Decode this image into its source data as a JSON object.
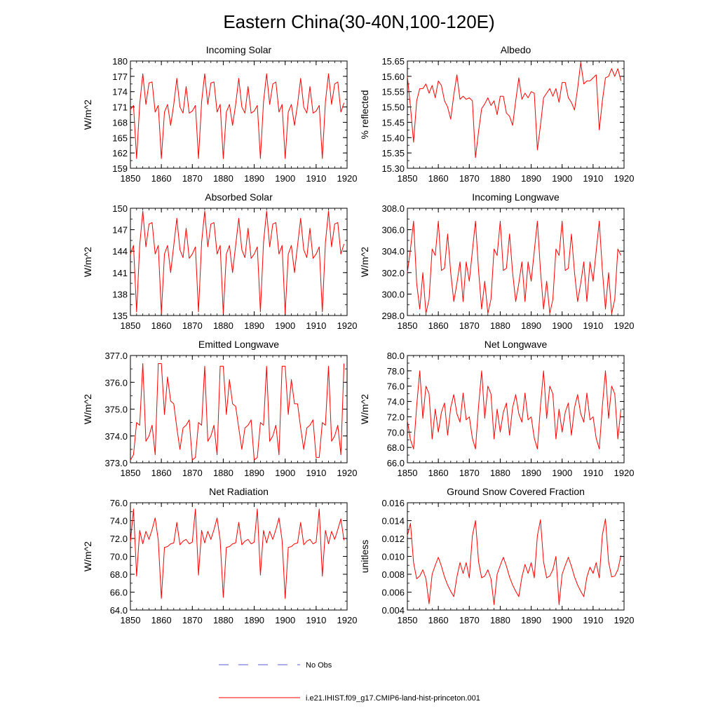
{
  "title": "Eastern China(30-40N,100-120E)",
  "colors": {
    "model": "#ff0000",
    "obs": "#5b5bd6",
    "axis": "#000000"
  },
  "legend": {
    "placement": "bottom-center",
    "obs_label": "No Obs",
    "model_label": "i.e21.IHIST.f09_g17.CMIP6-land-hist-princeton.001"
  },
  "chart_data": [
    {
      "type": "line",
      "title": "Incoming Solar",
      "ylabel": "W/m^2",
      "xlim": [
        1850,
        1920
      ],
      "xticks": [
        1850,
        1860,
        1870,
        1880,
        1890,
        1900,
        1910,
        1920
      ],
      "ylim": [
        159,
        180
      ],
      "yticks": [
        159,
        162,
        165,
        168,
        171,
        174,
        177,
        180
      ],
      "ytick_decimals": 0,
      "grid": false,
      "series": [
        {
          "name": "i.e21.IHIST.f09_g17.CMIP6-land-hist-princeton.001",
          "x_start": 1850,
          "x_step": 1,
          "values": [
            170.5,
            171.3,
            160.9,
            171.5,
            177.5,
            171.5,
            175.7,
            175.9,
            170.0,
            171.3,
            160.9,
            170.0,
            171.5,
            167.4,
            171.5,
            176.6,
            171.0,
            169.8,
            175.0,
            169.8,
            170.2,
            171.3,
            160.9,
            172.0,
            177.5,
            171.5,
            175.7,
            175.9,
            170.0,
            171.5,
            160.9,
            170.0,
            171.5,
            167.4,
            171.5,
            176.6,
            171.0,
            169.8,
            175.0,
            169.8,
            170.2,
            171.3,
            160.9,
            172.0,
            177.5,
            171.5,
            175.5,
            175.9,
            170.0,
            171.5,
            160.9,
            170.0,
            171.5,
            167.4,
            171.5,
            176.6,
            171.0,
            169.8,
            175.0,
            169.8,
            170.2,
            171.3,
            160.9,
            172.0,
            177.5,
            171.5,
            175.5,
            175.9,
            170.0,
            171.8
          ]
        }
      ]
    },
    {
      "type": "line",
      "title": "Albedo",
      "ylabel": "% reflected",
      "xlim": [
        1850,
        1920
      ],
      "xticks": [
        1850,
        1860,
        1870,
        1880,
        1890,
        1900,
        1910,
        1920
      ],
      "ylim": [
        15.3,
        15.65
      ],
      "yticks": [
        15.3,
        15.35,
        15.4,
        15.45,
        15.5,
        15.55,
        15.6,
        15.65
      ],
      "ytick_decimals": 2,
      "grid": false,
      "series": [
        {
          "name": "i.e21.IHIST.f09_g17.CMIP6-land-hist-princeton.001",
          "x_start": 1850,
          "x_step": 1,
          "values": [
            15.6,
            15.5,
            15.385,
            15.52,
            15.56,
            15.56,
            15.575,
            15.545,
            15.57,
            15.53,
            15.585,
            15.57,
            15.52,
            15.5,
            15.46,
            15.54,
            15.605,
            15.525,
            15.535,
            15.525,
            15.53,
            15.52,
            15.335,
            15.42,
            15.495,
            15.51,
            15.53,
            15.505,
            15.52,
            15.475,
            15.535,
            15.535,
            15.48,
            15.47,
            15.44,
            15.52,
            15.595,
            15.525,
            15.545,
            15.53,
            15.55,
            15.545,
            15.36,
            15.44,
            15.53,
            15.545,
            15.56,
            15.535,
            15.56,
            15.515,
            15.58,
            15.58,
            15.53,
            15.515,
            15.49,
            15.56,
            15.645,
            15.575,
            15.585,
            15.585,
            15.595,
            15.605,
            15.425,
            15.52,
            15.595,
            15.6,
            15.625,
            15.6,
            15.625,
            15.585
          ]
        }
      ]
    },
    {
      "type": "line",
      "title": "Absorbed Solar",
      "ylabel": "W/m^2",
      "xlim": [
        1850,
        1920
      ],
      "xticks": [
        1850,
        1860,
        1870,
        1880,
        1890,
        1900,
        1910,
        1920
      ],
      "ylim": [
        135,
        150
      ],
      "yticks": [
        135,
        138,
        141,
        144,
        147,
        150
      ],
      "ytick_decimals": 0,
      "grid": false,
      "series": [
        {
          "name": "i.e21.IHIST.f09_g17.CMIP6-land-hist-princeton.001",
          "x_start": 1850,
          "x_step": 1,
          "values": [
            143.6,
            144.8,
            135.5,
            144.8,
            149.6,
            144.6,
            147.8,
            148.0,
            143.6,
            144.8,
            135.3,
            143.6,
            144.8,
            141.0,
            144.8,
            148.6,
            144.2,
            143.1,
            147.2,
            143.0,
            143.6,
            144.6,
            135.5,
            145.2,
            149.6,
            144.6,
            147.8,
            148.0,
            143.6,
            144.8,
            135.3,
            143.6,
            144.8,
            141.0,
            144.8,
            148.6,
            144.2,
            143.1,
            147.2,
            143.0,
            143.6,
            144.6,
            135.5,
            145.2,
            149.6,
            144.6,
            147.8,
            148.0,
            143.6,
            144.8,
            135.3,
            143.6,
            144.8,
            141.0,
            144.8,
            148.6,
            144.2,
            143.1,
            147.2,
            143.0,
            143.6,
            144.6,
            135.5,
            145.2,
            149.6,
            144.6,
            147.8,
            148.0,
            143.6,
            145.0
          ]
        }
      ]
    },
    {
      "type": "line",
      "title": "Incoming Longwave",
      "ylabel": "W/m^2",
      "xlim": [
        1850,
        1920
      ],
      "xticks": [
        1850,
        1860,
        1870,
        1880,
        1890,
        1900,
        1910,
        1920
      ],
      "ylim": [
        298,
        308
      ],
      "yticks": [
        298,
        300,
        302,
        304,
        306,
        308
      ],
      "ytick_decimals": 1,
      "grid": false,
      "series": [
        {
          "name": "i.e21.IHIST.f09_g17.CMIP6-land-hist-princeton.001",
          "x_start": 1850,
          "x_step": 1,
          "values": [
            302.0,
            304.2,
            306.8,
            301.0,
            298.6,
            302.0,
            298.2,
            299.5,
            304.2,
            303.6,
            306.8,
            302.2,
            302.4,
            305.6,
            302.0,
            299.3,
            301.0,
            303.0,
            299.3,
            303.0,
            301.2,
            304.0,
            306.8,
            302.2,
            298.6,
            301.2,
            298.2,
            299.5,
            304.2,
            303.6,
            306.8,
            302.2,
            302.4,
            305.6,
            302.0,
            299.3,
            301.0,
            303.0,
            299.3,
            303.0,
            301.2,
            304.0,
            306.8,
            302.2,
            298.6,
            301.2,
            298.2,
            299.5,
            304.2,
            303.6,
            306.8,
            302.2,
            302.4,
            305.6,
            302.0,
            299.3,
            301.0,
            303.0,
            299.3,
            303.0,
            301.2,
            304.0,
            306.8,
            302.2,
            298.6,
            302.0,
            298.2,
            299.5,
            304.2,
            303.6
          ]
        }
      ]
    },
    {
      "type": "line",
      "title": "Emitted Longwave",
      "ylabel": "W/m^2",
      "xlim": [
        1850,
        1920
      ],
      "xticks": [
        1850,
        1860,
        1870,
        1880,
        1890,
        1900,
        1910,
        1920
      ],
      "ylim": [
        373,
        377
      ],
      "yticks": [
        373,
        374,
        375,
        376,
        377
      ],
      "ytick_decimals": 1,
      "grid": false,
      "series": [
        {
          "name": "i.e21.IHIST.f09_g17.CMIP6-land-hist-princeton.001",
          "x_start": 1850,
          "x_step": 1,
          "values": [
            373.1,
            373.3,
            374.5,
            374.4,
            376.7,
            373.8,
            374.0,
            374.4,
            373.3,
            376.7,
            376.7,
            374.8,
            376.2,
            375.3,
            375.2,
            374.3,
            373.5,
            374.3,
            374.4,
            374.6,
            373.1,
            373.2,
            374.5,
            374.4,
            376.6,
            373.8,
            374.0,
            374.4,
            373.3,
            376.6,
            376.6,
            374.8,
            376.1,
            375.2,
            375.1,
            374.3,
            373.5,
            374.3,
            374.4,
            374.6,
            373.1,
            373.2,
            374.5,
            374.4,
            376.6,
            373.8,
            374.0,
            374.4,
            373.3,
            376.6,
            376.6,
            374.8,
            376.1,
            375.2,
            375.2,
            374.3,
            373.5,
            374.3,
            374.4,
            374.6,
            373.2,
            373.2,
            374.5,
            374.4,
            376.6,
            373.8,
            374.0,
            374.4,
            373.3,
            376.7
          ]
        }
      ]
    },
    {
      "type": "line",
      "title": "Net Longwave",
      "ylabel": "W/m^2",
      "xlim": [
        1850,
        1920
      ],
      "xticks": [
        1850,
        1860,
        1870,
        1880,
        1890,
        1900,
        1910,
        1920
      ],
      "ylim": [
        66,
        80
      ],
      "yticks": [
        66,
        68,
        70,
        72,
        74,
        76,
        78,
        80
      ],
      "ytick_decimals": 1,
      "grid": false,
      "series": [
        {
          "name": "i.e21.IHIST.f09_g17.CMIP6-land-hist-princeton.001",
          "x_start": 1850,
          "x_step": 1,
          "values": [
            71.5,
            69.0,
            67.8,
            73.4,
            78.0,
            71.8,
            76.0,
            75.0,
            69.1,
            73.0,
            70.0,
            72.6,
            73.8,
            69.6,
            73.2,
            74.9,
            72.4,
            71.3,
            75.1,
            71.6,
            72.0,
            69.2,
            67.8,
            73.4,
            78.0,
            71.8,
            76.0,
            75.0,
            69.1,
            73.0,
            70.0,
            72.6,
            73.8,
            69.6,
            73.2,
            74.9,
            72.4,
            71.3,
            75.1,
            71.6,
            72.0,
            69.2,
            67.8,
            73.4,
            78.0,
            71.8,
            76.0,
            75.0,
            69.1,
            73.0,
            70.0,
            72.6,
            73.8,
            69.6,
            73.2,
            74.9,
            72.4,
            71.3,
            75.1,
            71.6,
            72.0,
            69.2,
            67.8,
            73.4,
            78.0,
            71.8,
            76.0,
            75.0,
            69.1,
            73.0
          ]
        }
      ]
    },
    {
      "type": "line",
      "title": "Net Radiation",
      "ylabel": "W/m^2",
      "xlim": [
        1850,
        1920
      ],
      "xticks": [
        1850,
        1860,
        1870,
        1880,
        1890,
        1900,
        1910,
        1920
      ],
      "ylim": [
        64,
        76
      ],
      "yticks": [
        64,
        66,
        68,
        70,
        72,
        74,
        76
      ],
      "ytick_decimals": 1,
      "grid": false,
      "series": [
        {
          "name": "i.e21.IHIST.f09_g17.CMIP6-land-hist-princeton.001",
          "x_start": 1850,
          "x_step": 1,
          "values": [
            71.6,
            75.3,
            67.8,
            72.9,
            71.4,
            72.8,
            71.9,
            73.0,
            74.3,
            71.8,
            65.3,
            71.0,
            71.1,
            71.4,
            71.5,
            73.8,
            71.3,
            71.7,
            71.9,
            71.4,
            71.6,
            75.3,
            67.9,
            72.9,
            71.5,
            72.8,
            71.9,
            73.0,
            74.3,
            71.8,
            65.4,
            71.0,
            71.1,
            71.4,
            71.5,
            73.8,
            71.3,
            71.7,
            71.9,
            71.4,
            71.6,
            75.3,
            67.9,
            72.9,
            71.5,
            72.8,
            71.9,
            73.0,
            74.3,
            71.8,
            65.3,
            71.0,
            71.1,
            71.4,
            71.5,
            73.8,
            71.3,
            71.7,
            71.9,
            71.4,
            71.6,
            75.3,
            67.8,
            72.9,
            71.4,
            72.8,
            71.9,
            73.0,
            74.2,
            71.8
          ]
        }
      ]
    },
    {
      "type": "line",
      "title": "Ground Snow Covered Fraction",
      "ylabel": "unitless",
      "xlim": [
        1850,
        1920
      ],
      "xticks": [
        1850,
        1860,
        1870,
        1880,
        1890,
        1900,
        1910,
        1920
      ],
      "ylim": [
        0.004,
        0.016
      ],
      "yticks": [
        0.004,
        0.006,
        0.008,
        0.01,
        0.012,
        0.014,
        0.016
      ],
      "ytick_decimals": 3,
      "grid": false,
      "series": [
        {
          "name": "i.e21.IHIST.f09_g17.CMIP6-land-hist-princeton.001",
          "x_start": 1850,
          "x_step": 1,
          "values": [
            0.0123,
            0.0137,
            0.0093,
            0.0075,
            0.0078,
            0.0085,
            0.0075,
            0.0047,
            0.008,
            0.009,
            0.0099,
            0.0089,
            0.0077,
            0.0068,
            0.0061,
            0.0055,
            0.0077,
            0.0093,
            0.0081,
            0.0093,
            0.0076,
            0.0123,
            0.014,
            0.0094,
            0.0076,
            0.0078,
            0.0085,
            0.0075,
            0.0046,
            0.008,
            0.009,
            0.0099,
            0.0089,
            0.0077,
            0.0068,
            0.0061,
            0.0055,
            0.0077,
            0.0091,
            0.0081,
            0.0093,
            0.0076,
            0.0123,
            0.0141,
            0.0094,
            0.0076,
            0.0078,
            0.0085,
            0.01,
            0.0046,
            0.008,
            0.009,
            0.0099,
            0.0089,
            0.0077,
            0.0068,
            0.0061,
            0.0055,
            0.0077,
            0.0088,
            0.0081,
            0.0093,
            0.0076,
            0.0124,
            0.0142,
            0.0094,
            0.0077,
            0.0078,
            0.0085,
            0.0101
          ]
        }
      ]
    }
  ]
}
